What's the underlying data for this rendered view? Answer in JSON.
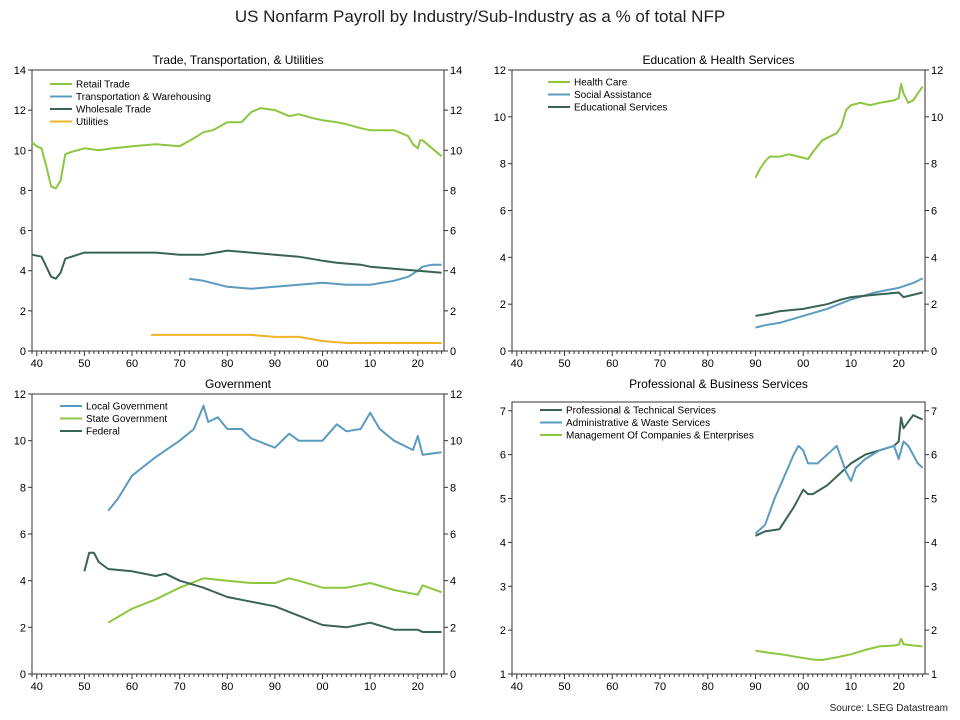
{
  "title": "US Nonfarm Payroll by Industry/Sub-Industry as a % of total NFP",
  "source": "Source: LSEG Datastream",
  "chart_data": [
    {
      "type": "line",
      "title": "Trade, Transportation, & Utilities",
      "xlim": [
        1939,
        2025.5
      ],
      "ylim": [
        0,
        14
      ],
      "x_ticks": [
        1940,
        1950,
        1960,
        1970,
        1980,
        1990,
        2000,
        2010,
        2020
      ],
      "x_tick_labels": [
        "40",
        "50",
        "60",
        "70",
        "80",
        "90",
        "00",
        "10",
        "20"
      ],
      "y_ticks": [
        0,
        2,
        4,
        6,
        8,
        10,
        12,
        14
      ],
      "legend": "top-left",
      "series": [
        {
          "name": "Retail Trade",
          "color": "#8dc63f",
          "x": [
            1939,
            1940,
            1941,
            1942,
            1943,
            1944,
            1945,
            1946,
            1947,
            1950,
            1953,
            1956,
            1960,
            1965,
            1970,
            1973,
            1975,
            1977,
            1980,
            1983,
            1985,
            1987,
            1990,
            1993,
            1995,
            1998,
            2000,
            2003,
            2005,
            2008,
            2010,
            2013,
            2015,
            2018,
            2019,
            2020,
            2020.5,
            2021,
            2023,
            2025
          ],
          "y": [
            10.4,
            10.2,
            10.1,
            9.2,
            8.2,
            8.1,
            8.5,
            9.8,
            9.9,
            10.1,
            10.0,
            10.1,
            10.2,
            10.3,
            10.2,
            10.6,
            10.9,
            11.0,
            11.4,
            11.4,
            11.9,
            12.1,
            12.0,
            11.7,
            11.8,
            11.6,
            11.5,
            11.4,
            11.3,
            11.1,
            11.0,
            11.0,
            11.0,
            10.7,
            10.3,
            10.1,
            10.5,
            10.5,
            10.1,
            9.7
          ]
        },
        {
          "name": "Transportation & Warehousing",
          "color": "#5b9bc0",
          "x": [
            1972,
            1975,
            1980,
            1985,
            1990,
            1995,
            2000,
            2005,
            2010,
            2015,
            2018,
            2020,
            2021,
            2023,
            2025
          ],
          "y": [
            3.6,
            3.5,
            3.2,
            3.1,
            3.2,
            3.3,
            3.4,
            3.3,
            3.3,
            3.5,
            3.7,
            4.0,
            4.2,
            4.3,
            4.3
          ]
        },
        {
          "name": "Wholesale Trade",
          "color": "#3a6356",
          "x": [
            1939,
            1941,
            1942,
            1943,
            1944,
            1945,
            1946,
            1950,
            1955,
            1960,
            1965,
            1970,
            1975,
            1980,
            1985,
            1990,
            1995,
            2000,
            2003,
            2008,
            2010,
            2015,
            2020,
            2025
          ],
          "y": [
            4.8,
            4.7,
            4.2,
            3.7,
            3.6,
            3.9,
            4.6,
            4.9,
            4.9,
            4.9,
            4.9,
            4.8,
            4.8,
            5.0,
            4.9,
            4.8,
            4.7,
            4.5,
            4.4,
            4.3,
            4.2,
            4.1,
            4.0,
            3.9
          ]
        },
        {
          "name": "Utilities",
          "color": "#f0b429",
          "x": [
            1964,
            1967,
            1970,
            1975,
            1980,
            1985,
            1990,
            1995,
            2000,
            2005,
            2010,
            2015,
            2020,
            2025
          ],
          "y": [
            0.8,
            0.8,
            0.8,
            0.8,
            0.8,
            0.8,
            0.7,
            0.7,
            0.5,
            0.4,
            0.4,
            0.4,
            0.4,
            0.4
          ]
        }
      ]
    },
    {
      "type": "line",
      "title": "Education & Health Services",
      "xlim": [
        1939,
        2025.5
      ],
      "ylim": [
        0,
        12
      ],
      "x_ticks": [
        1940,
        1950,
        1960,
        1970,
        1980,
        1990,
        2000,
        2010,
        2020
      ],
      "x_tick_labels": [
        "40",
        "50",
        "60",
        "70",
        "80",
        "90",
        "00",
        "10",
        "20"
      ],
      "y_ticks": [
        0,
        2,
        4,
        6,
        8,
        10,
        12
      ],
      "legend": "top-left",
      "series": [
        {
          "name": "Health Care",
          "color": "#8dc63f",
          "x": [
            1990,
            1991,
            1992,
            1993,
            1995,
            1997,
            1999,
            2001,
            2002,
            2004,
            2007,
            2008,
            2009,
            2010,
            2012,
            2014,
            2016,
            2019,
            2020,
            2020.5,
            2021,
            2022,
            2023,
            2025
          ],
          "y": [
            7.4,
            7.8,
            8.1,
            8.3,
            8.3,
            8.4,
            8.3,
            8.2,
            8.5,
            9.0,
            9.3,
            9.6,
            10.3,
            10.5,
            10.6,
            10.5,
            10.6,
            10.7,
            10.8,
            11.4,
            11.0,
            10.6,
            10.7,
            11.3
          ]
        },
        {
          "name": "Social Assistance",
          "color": "#5b9bc0",
          "x": [
            1990,
            1992,
            1995,
            2000,
            2005,
            2010,
            2015,
            2020,
            2023,
            2025
          ],
          "y": [
            1.0,
            1.1,
            1.2,
            1.5,
            1.8,
            2.2,
            2.5,
            2.7,
            2.9,
            3.1
          ]
        },
        {
          "name": "Educational Services",
          "color": "#3a6356",
          "x": [
            1990,
            1993,
            1995,
            2000,
            2005,
            2008,
            2010,
            2015,
            2020,
            2021,
            2025
          ],
          "y": [
            1.5,
            1.6,
            1.7,
            1.8,
            2.0,
            2.2,
            2.3,
            2.4,
            2.5,
            2.3,
            2.5
          ]
        }
      ]
    },
    {
      "type": "line",
      "title": "Government",
      "xlim": [
        1939,
        2025.5
      ],
      "ylim": [
        0,
        12
      ],
      "x_ticks": [
        1940,
        1950,
        1960,
        1970,
        1980,
        1990,
        2000,
        2010,
        2020
      ],
      "x_tick_labels": [
        "40",
        "50",
        "60",
        "70",
        "80",
        "90",
        "00",
        "10",
        "20"
      ],
      "y_ticks": [
        0,
        2,
        4,
        6,
        8,
        10,
        12
      ],
      "legend": "top-left",
      "series": [
        {
          "name": "Local Government",
          "color": "#5b9bc0",
          "x": [
            1955,
            1957,
            1960,
            1965,
            1970,
            1973,
            1975,
            1976,
            1978,
            1980,
            1983,
            1985,
            1990,
            1993,
            1995,
            2000,
            2003,
            2005,
            2008,
            2010,
            2012,
            2015,
            2019,
            2020,
            2021,
            2025
          ],
          "y": [
            7.0,
            7.5,
            8.5,
            9.3,
            10.0,
            10.5,
            11.5,
            10.8,
            11.0,
            10.5,
            10.5,
            10.1,
            9.7,
            10.3,
            10.0,
            10.0,
            10.7,
            10.4,
            10.5,
            11.2,
            10.5,
            10.0,
            9.6,
            10.2,
            9.4,
            9.5
          ]
        },
        {
          "name": "State Government",
          "color": "#8dc63f",
          "x": [
            1955,
            1960,
            1965,
            1970,
            1975,
            1980,
            1985,
            1990,
            1993,
            1995,
            2000,
            2005,
            2010,
            2015,
            2020,
            2021,
            2025
          ],
          "y": [
            2.2,
            2.8,
            3.2,
            3.7,
            4.1,
            4.0,
            3.9,
            3.9,
            4.1,
            4.0,
            3.7,
            3.7,
            3.9,
            3.6,
            3.4,
            3.8,
            3.5
          ]
        },
        {
          "name": "Federal",
          "color": "#3a6356",
          "x": [
            1950,
            1951,
            1952,
            1953,
            1955,
            1960,
            1965,
            1967,
            1970,
            1975,
            1980,
            1985,
            1990,
            1995,
            2000,
            2005,
            2010,
            2015,
            2020,
            2021,
            2025
          ],
          "y": [
            4.4,
            5.2,
            5.2,
            4.8,
            4.5,
            4.4,
            4.2,
            4.3,
            4.0,
            3.7,
            3.3,
            3.1,
            2.9,
            2.5,
            2.1,
            2.0,
            2.2,
            1.9,
            1.9,
            1.8,
            1.8
          ]
        }
      ]
    },
    {
      "type": "line",
      "title": "Professional & Business Services",
      "xlim": [
        1939,
        2025.5
      ],
      "ylim": [
        1,
        7.2
      ],
      "x_ticks": [
        1940,
        1950,
        1960,
        1970,
        1980,
        1990,
        2000,
        2010,
        2020
      ],
      "x_tick_labels": [
        "40",
        "50",
        "60",
        "70",
        "80",
        "90",
        "00",
        "10",
        "20"
      ],
      "y_ticks": [
        1,
        2,
        3,
        4,
        5,
        6,
        7
      ],
      "legend": "top-left",
      "series": [
        {
          "name": "Professional & Technical Services",
          "color": "#3a6356",
          "x": [
            1990,
            1992,
            1995,
            1998,
            2000,
            2001,
            2002,
            2005,
            2008,
            2010,
            2013,
            2016,
            2019,
            2020,
            2020.5,
            2021,
            2023,
            2025
          ],
          "y": [
            4.15,
            4.25,
            4.3,
            4.8,
            5.2,
            5.1,
            5.1,
            5.3,
            5.6,
            5.8,
            6.0,
            6.1,
            6.2,
            6.3,
            6.85,
            6.6,
            6.9,
            6.8
          ]
        },
        {
          "name": "Administrative & Waste Services",
          "color": "#5b9bc0",
          "x": [
            1990,
            1992,
            1994,
            1996,
            1998,
            1999,
            2000,
            2001,
            2003,
            2006,
            2007,
            2009,
            2010,
            2011,
            2013,
            2016,
            2019,
            2020,
            2021,
            2022,
            2023,
            2024,
            2025
          ],
          "y": [
            4.2,
            4.4,
            5.0,
            5.5,
            6.0,
            6.2,
            6.1,
            5.8,
            5.8,
            6.1,
            6.2,
            5.6,
            5.4,
            5.7,
            5.9,
            6.1,
            6.2,
            5.9,
            6.3,
            6.2,
            6.0,
            5.8,
            5.7
          ]
        },
        {
          "name": "Management Of Companies & Enterprises",
          "color": "#8dc63f",
          "x": [
            1990,
            1993,
            1996,
            1999,
            2002,
            2004,
            2007,
            2010,
            2013,
            2016,
            2019,
            2020,
            2020.5,
            2021,
            2023,
            2025
          ],
          "y": [
            1.53,
            1.48,
            1.44,
            1.38,
            1.33,
            1.32,
            1.38,
            1.45,
            1.55,
            1.63,
            1.65,
            1.67,
            1.8,
            1.68,
            1.65,
            1.63
          ]
        }
      ]
    }
  ]
}
